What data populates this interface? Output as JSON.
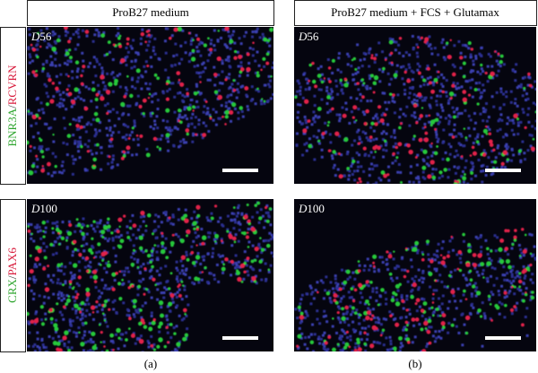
{
  "header": {
    "columns": [
      "ProB27 medium",
      "ProB27 medium + FCS + Glutamax"
    ]
  },
  "rows": [
    {
      "label": {
        "green": "BNR3A",
        "separator": "/",
        "red": "RCVRN"
      }
    },
    {
      "label": {
        "green": "CRX",
        "separator": "/",
        "red": "PAX6"
      }
    }
  ],
  "panels": [
    {
      "prefix": "D",
      "day": "56"
    },
    {
      "prefix": "D",
      "day": "56"
    },
    {
      "prefix": "D",
      "day": "100"
    },
    {
      "prefix": "D",
      "day": "100"
    }
  ],
  "captions": [
    "(a)",
    "(b)"
  ]
}
